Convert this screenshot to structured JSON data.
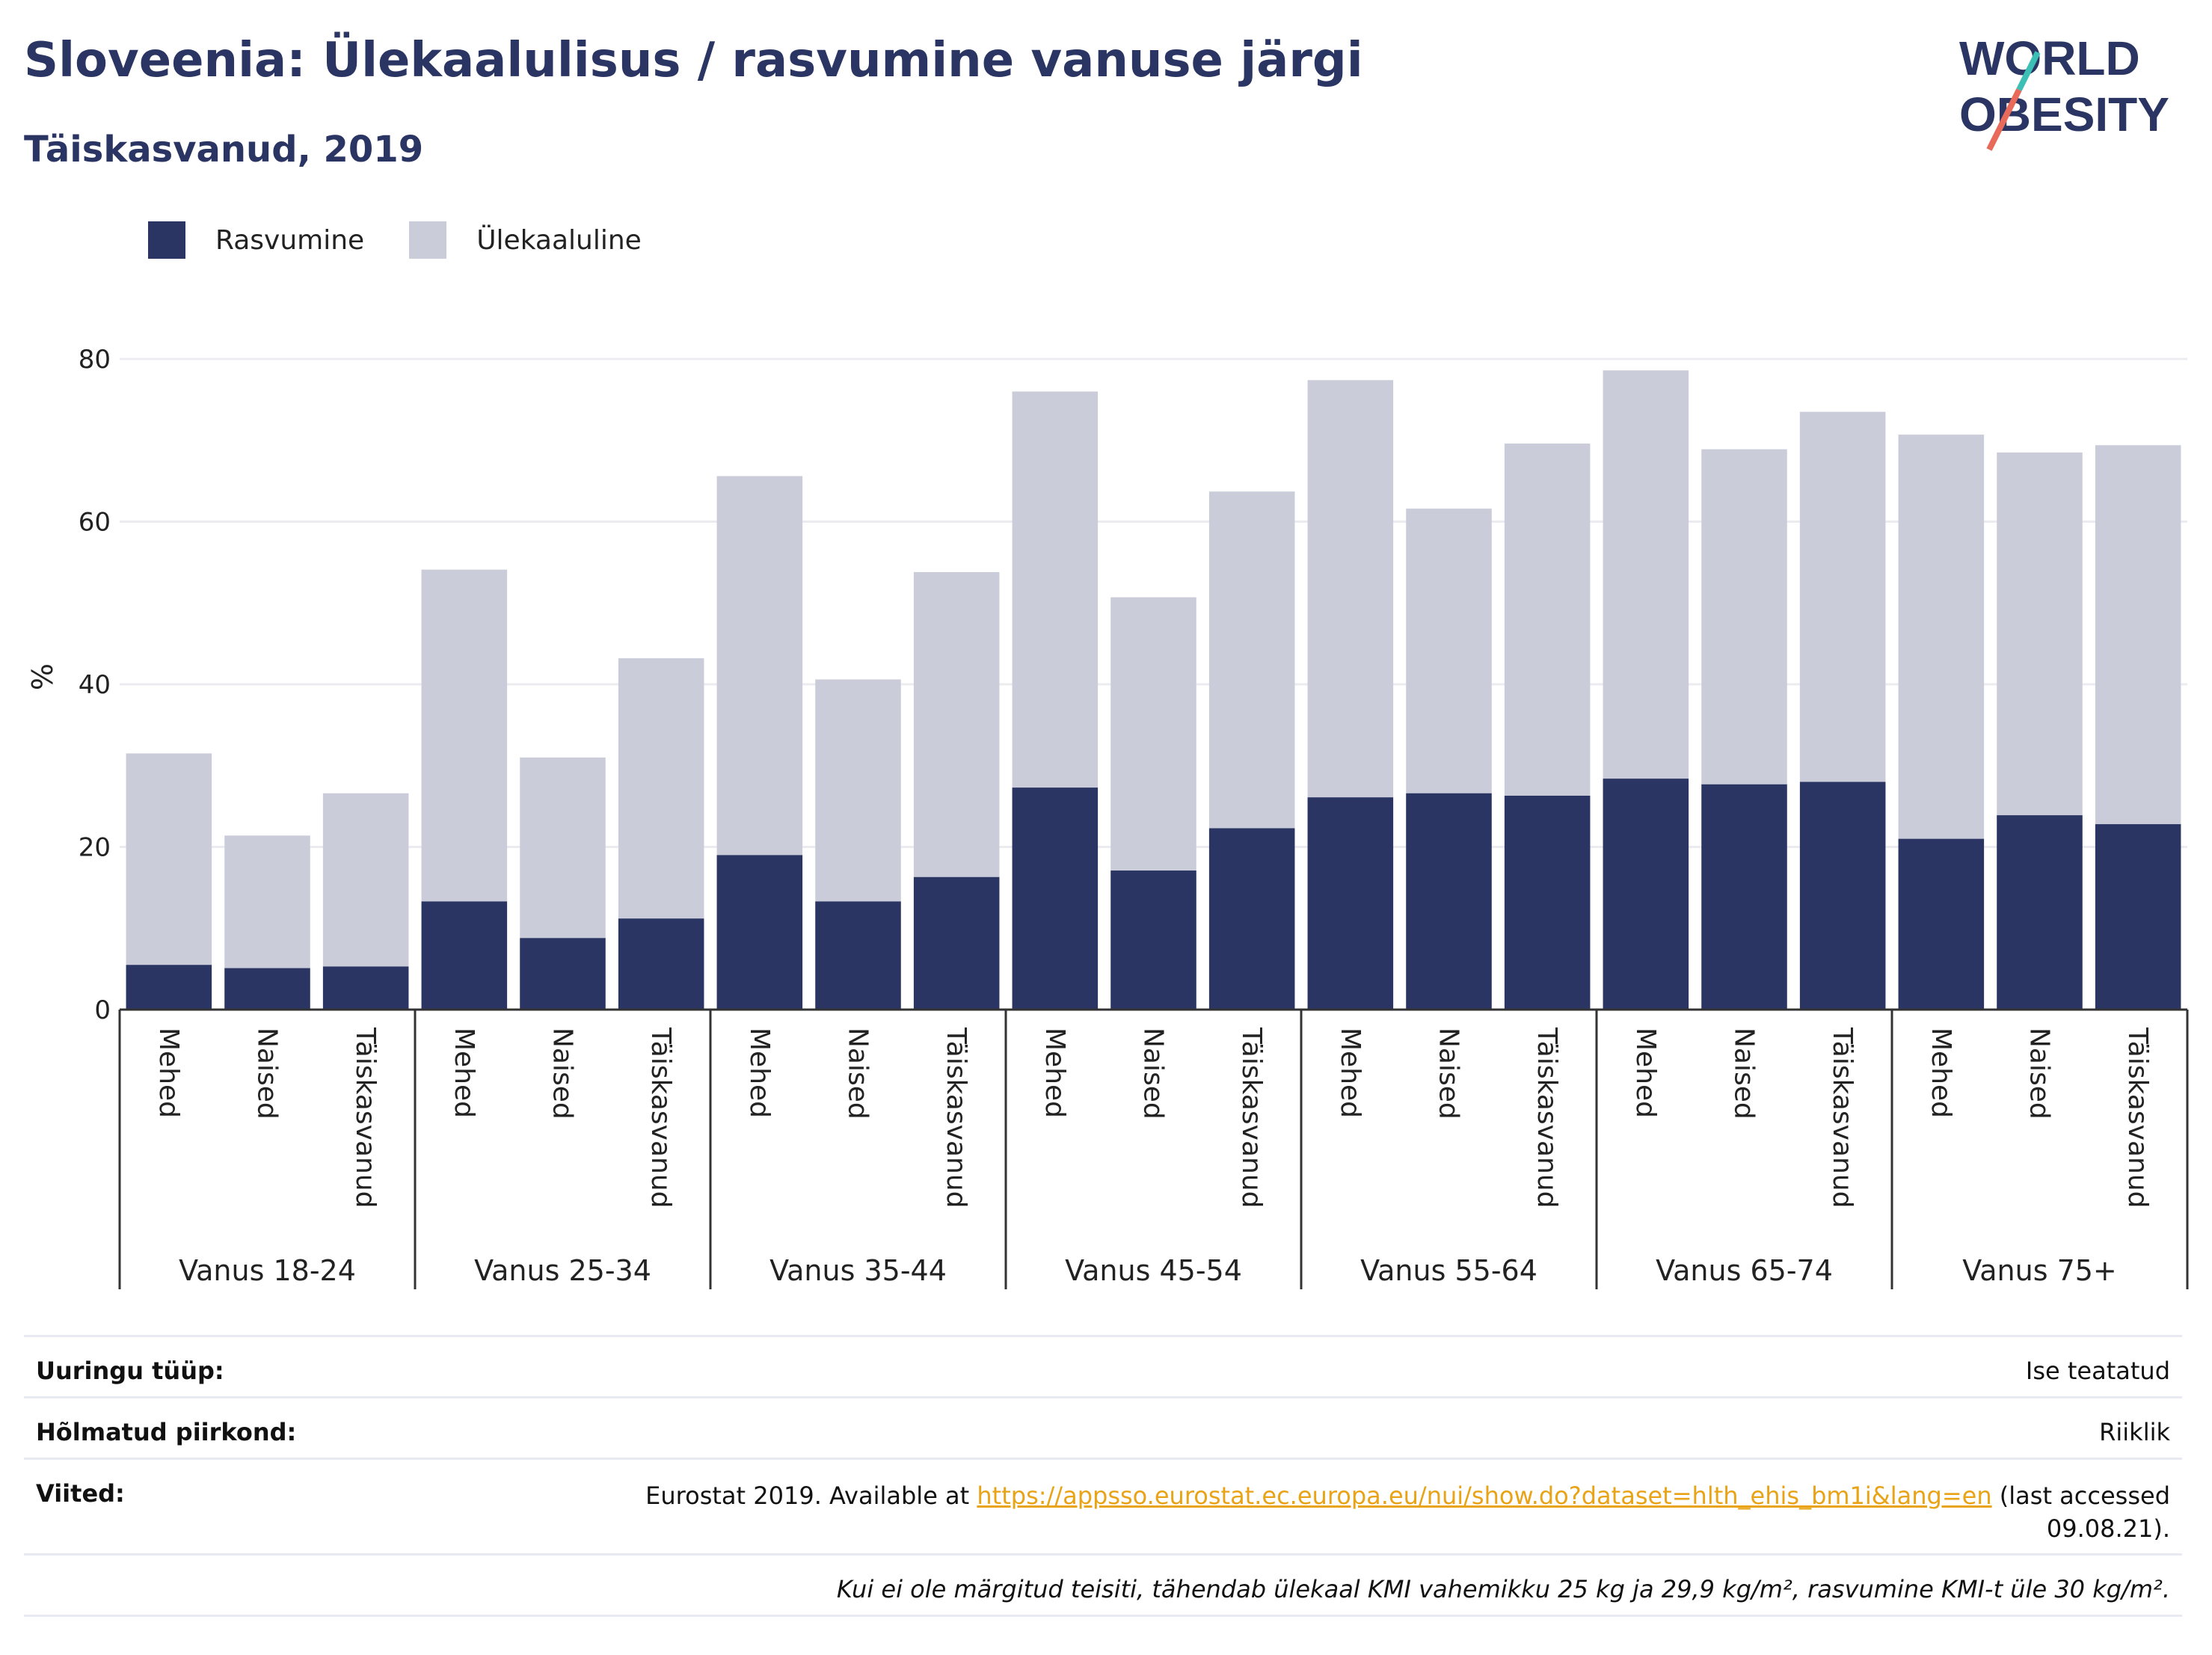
{
  "title": "Sloveenia: Ülekaalulisus / rasvumine vanuse järgi",
  "subtitle": "Täiskasvanud, 2019",
  "logo": {
    "line1": "WORLD",
    "line2": "OBESITY"
  },
  "legend": [
    {
      "label": "Rasvumine",
      "color": "#2a3563"
    },
    {
      "label": "Ülekaaluline",
      "color": "#cacdd9"
    }
  ],
  "colors": {
    "obesity": "#2a3563",
    "overweight": "#cacdd9",
    "accent": "#e8a317",
    "title": "#2a3563"
  },
  "chart_data": {
    "type": "bar",
    "stacked": true,
    "ylabel": "%",
    "ylim": [
      0,
      80
    ],
    "yticks": [
      0,
      20,
      40,
      60,
      80
    ],
    "grid": true,
    "legend_position": "top-left",
    "groups": [
      "Vanus 18-24",
      "Vanus 25-34",
      "Vanus 35-44",
      "Vanus 45-54",
      "Vanus 55-64",
      "Vanus 65-74",
      "Vanus 75+"
    ],
    "subcategories": [
      "Mehed",
      "Naised",
      "Täiskasvanud"
    ],
    "series": [
      {
        "name": "Rasvumine",
        "values": [
          5.5,
          5.1,
          5.3,
          13.3,
          8.8,
          11.2,
          19.0,
          13.3,
          16.3,
          27.3,
          17.1,
          22.3,
          26.1,
          26.6,
          26.3,
          28.4,
          27.7,
          28.0,
          21.0,
          23.9,
          22.8
        ]
      },
      {
        "name": "Ülekaaluline",
        "values": [
          26.0,
          16.3,
          21.3,
          40.8,
          22.2,
          32.0,
          46.6,
          27.3,
          37.5,
          48.7,
          33.6,
          41.4,
          51.3,
          35.0,
          43.3,
          50.2,
          41.2,
          45.5,
          49.7,
          44.6,
          46.6
        ]
      }
    ]
  },
  "info": {
    "survey_type_label": "Uuringu tüüp:",
    "survey_type_value": "Ise teatatud",
    "region_label": "Hõlmatud piirkond:",
    "region_value": "Riiklik",
    "references_label": "Viited:",
    "references_prefix": "Eurostat 2019. Available at ",
    "references_link": "https://appsso.eurostat.ec.europa.eu/nui/show.do?dataset=hlth_ehis_bm1i&lang=en",
    "references_suffix_1": " (last accessed",
    "references_suffix_2": "09.08.21).",
    "note": "Kui ei ole märgitud teisiti, tähendab ülekaal KMI vahemikku 25 kg ja 29,9 kg/m², rasvumine KMI-t üle 30 kg/m²."
  }
}
